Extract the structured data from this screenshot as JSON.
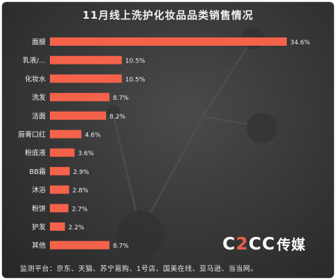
{
  "title": "11月线上洗护化妆品品类销售情况",
  "footer": "监测平台：京东、天猫、苏宁易购、1号店、国美在线、亚马逊、当当网。",
  "logo": {
    "part1": "C",
    "part2": "2",
    "part3": "CC",
    "part4": "传媒"
  },
  "colors": {
    "bar": "#f4624a",
    "background": "#3a3a3a",
    "text": "#f2f2f2"
  },
  "chart_data": {
    "type": "bar",
    "orientation": "horizontal",
    "categories": [
      "面膜",
      "乳液/…",
      "化妆水",
      "洗发",
      "洁面",
      "唇膏口红",
      "粉底液",
      "BB霜",
      "沐浴",
      "粉饼",
      "护发",
      "其他"
    ],
    "values": [
      34.6,
      10.5,
      10.5,
      8.7,
      8.2,
      4.6,
      3.6,
      2.9,
      2.8,
      2.7,
      2.2,
      8.7
    ],
    "labels": [
      "34.6%",
      "10.5%",
      "10.5%",
      "8.7%",
      "8.2%",
      "4.6%",
      "3.6%",
      "2.9%",
      "2.8%",
      "2.7%",
      "2.2%",
      "8.7%"
    ],
    "unit": "%",
    "xlim": [
      0,
      34.6
    ],
    "grid": false,
    "legend": "none"
  }
}
